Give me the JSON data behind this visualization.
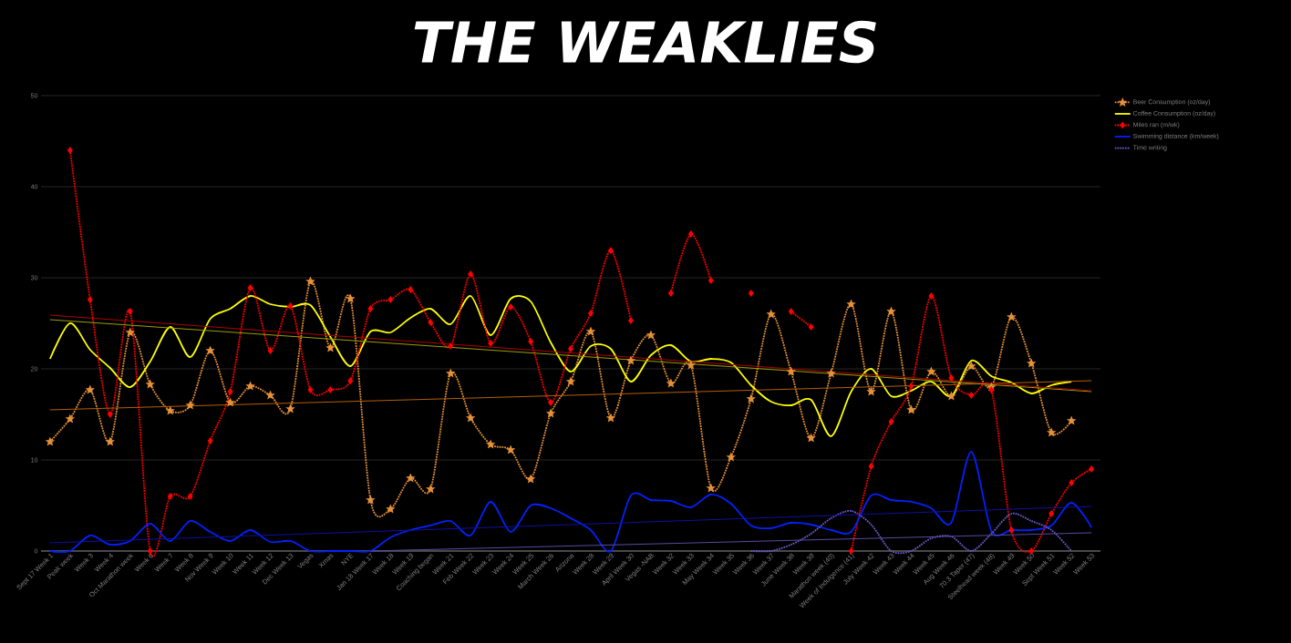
{
  "chart_data": {
    "type": "line",
    "title": "THE WEAKLIES",
    "categories": [
      "Sept 17 Week 1",
      "Peak week",
      "Week 3",
      "Week 4",
      "Oct Marathon week",
      "Week 6",
      "Week 7",
      "Week 8",
      "Nov Week 9",
      "Week 10",
      "Week 11",
      "Week 12",
      "Dec Week 13",
      "Vegas",
      "Xmas",
      "NYE",
      "Jan 18 Week 17",
      "Week 18",
      "Week 19",
      "Coaching began",
      "Week 21",
      "Feb Week 22",
      "Week 23",
      "Week 24",
      "Week 25",
      "March Week 26",
      "Arizona",
      "Week 28",
      "Week 29",
      "April Week 30",
      "Vegas -NAB",
      "Week 32",
      "Week 33",
      "May Week 34",
      "Week 35",
      "Week 36",
      "Week 37",
      "June Week 38",
      "Week 39",
      "Marathon week (40)",
      "Week of Indulgence (41)",
      "July Week 42",
      "Week 43",
      "Week 44",
      "Week 45",
      "Aug Week 46",
      "70.3 Taper (47)",
      "Steelhead week (48)",
      "Week 49",
      "Week 50",
      "Sept Week 51",
      "Week 52",
      "Week 53"
    ],
    "series": [
      {
        "name": "Beer Consumption (oz/day)",
        "color": "#e69138",
        "marker": "star",
        "line_style": "dotted",
        "values": [
          12.0,
          14.5,
          17.7,
          12.0,
          24.0,
          18.3,
          15.4,
          16.0,
          22.0,
          16.3,
          18.1,
          17.1,
          15.6,
          29.6,
          22.3,
          27.7,
          5.6,
          4.6,
          8.0,
          6.8,
          19.5,
          14.6,
          11.7,
          11.1,
          7.9,
          15.1,
          18.6,
          24.1,
          14.6,
          20.9,
          23.7,
          18.4,
          20.4,
          6.9,
          10.3,
          16.7,
          26.0,
          19.7,
          12.4,
          19.5,
          27.1,
          17.5,
          26.3,
          15.5,
          19.7,
          17.0,
          20.3,
          18.0,
          25.7,
          20.6,
          13.0,
          14.3,
          null
        ]
      },
      {
        "name": "Coffee Consumption (oz/day)",
        "color": "#ffff00",
        "marker": "none",
        "line_style": "solid",
        "values": [
          21.1,
          25.0,
          22.1,
          20.1,
          18.0,
          20.8,
          24.6,
          21.3,
          25.5,
          26.6,
          28.0,
          27.1,
          26.8,
          27.0,
          23.5,
          20.3,
          24.1,
          24.0,
          25.6,
          26.6,
          24.9,
          28.0,
          23.7,
          27.7,
          27.4,
          22.9,
          19.7,
          22.5,
          22.2,
          18.6,
          21.5,
          22.6,
          20.8,
          21.1,
          20.7,
          18.2,
          16.4,
          16.0,
          16.6,
          12.6,
          17.5,
          20.0,
          17.0,
          17.6,
          18.6,
          17.0,
          20.9,
          19.2,
          18.5,
          17.3,
          18.2,
          18.6,
          null
        ]
      },
      {
        "name": "Miles ran (m/wk)",
        "color": "#ff0000",
        "marker": "diamond",
        "line_style": "dotted",
        "values": [
          null,
          44.0,
          27.6,
          15.0,
          26.3,
          0,
          6.0,
          6.0,
          12.1,
          17.5,
          28.9,
          22.0,
          26.9,
          17.7,
          17.7,
          18.7,
          26.6,
          27.6,
          28.7,
          25.1,
          22.5,
          30.4,
          22.8,
          26.8,
          23.0,
          16.3,
          22.2,
          26.1,
          33.0,
          25.3,
          null,
          28.3,
          34.8,
          29.7,
          null,
          28.3,
          null,
          26.3,
          24.6,
          null,
          0,
          9.3,
          14.2,
          18.1,
          28.0,
          19.0,
          17.1,
          17.7,
          2.3,
          0,
          4.1,
          7.5,
          9.0
        ]
      },
      {
        "name": "Swimming distance (km/week)",
        "color": "#0022ff",
        "marker": "none",
        "line_style": "solid",
        "values": [
          0,
          0,
          1.7,
          0.7,
          1.1,
          3.0,
          1.1,
          3.3,
          2.1,
          1.1,
          2.3,
          1.0,
          1.1,
          0,
          0,
          0,
          0,
          1.5,
          2.3,
          2.8,
          3.3,
          1.7,
          5.4,
          2.1,
          5.0,
          4.7,
          3.6,
          2.3,
          0,
          6.1,
          5.6,
          5.5,
          4.8,
          6.2,
          5.2,
          2.8,
          2.5,
          3.1,
          2.9,
          2.3,
          2.1,
          6.1,
          5.6,
          5.4,
          4.7,
          3.1,
          10.9,
          2.2,
          2.3,
          2.3,
          2.8,
          5.3,
          2.6
        ]
      },
      {
        "name": "Time writing",
        "color": "#6a5acd",
        "marker": "none",
        "line_style": "dotted",
        "values": [
          null,
          null,
          null,
          null,
          null,
          null,
          null,
          null,
          null,
          null,
          null,
          null,
          null,
          null,
          null,
          null,
          null,
          null,
          null,
          null,
          null,
          null,
          null,
          null,
          null,
          null,
          null,
          null,
          null,
          null,
          null,
          null,
          null,
          null,
          null,
          0,
          0,
          0.7,
          1.9,
          3.6,
          4.4,
          2.9,
          0,
          0,
          1.4,
          1.6,
          0,
          1.9,
          4.1,
          3.3,
          2.3,
          0,
          null
        ]
      },
      {
        "type": "line",
        "color": "#b45f06",
        "marker": "none",
        "line_style": "solid",
        "values": [
          15.5,
          null,
          null,
          null,
          null,
          null,
          null,
          null,
          null,
          null,
          null,
          null,
          null,
          null,
          null,
          null,
          null,
          null,
          null,
          null,
          null,
          null,
          null,
          null,
          null,
          null,
          null,
          null,
          null,
          null,
          null,
          null,
          null,
          null,
          null,
          null,
          null,
          null,
          null,
          null,
          null,
          null,
          null,
          null,
          null,
          null,
          null,
          null,
          null,
          null,
          null,
          null,
          18.7
        ]
      },
      {
        "type": "line",
        "color": "#9e9e00",
        "marker": "none",
        "line_style": "solid",
        "values": [
          25.4,
          null,
          null,
          null,
          null,
          null,
          null,
          null,
          null,
          null,
          null,
          null,
          null,
          null,
          null,
          null,
          null,
          null,
          null,
          null,
          null,
          null,
          null,
          null,
          null,
          null,
          null,
          null,
          null,
          null,
          null,
          null,
          null,
          null,
          null,
          null,
          null,
          null,
          null,
          null,
          null,
          null,
          null,
          null,
          null,
          null,
          null,
          null,
          null,
          null,
          null,
          null,
          17.5
        ]
      },
      {
        "type": "line",
        "color": "#b00000",
        "marker": "none",
        "line_style": "solid",
        "values": [
          25.9,
          null,
          null,
          null,
          null,
          null,
          null,
          null,
          null,
          null,
          null,
          null,
          null,
          null,
          null,
          null,
          null,
          null,
          null,
          null,
          null,
          null,
          null,
          null,
          null,
          null,
          null,
          null,
          null,
          null,
          null,
          null,
          null,
          null,
          null,
          null,
          null,
          null,
          null,
          null,
          null,
          null,
          null,
          null,
          null,
          null,
          null,
          null,
          null,
          null,
          null,
          null,
          17.6
        ]
      },
      {
        "type": "line",
        "color": "#1010a0",
        "marker": "none",
        "line_style": "solid",
        "values": [
          0.9,
          null,
          null,
          null,
          null,
          null,
          null,
          null,
          null,
          null,
          null,
          null,
          null,
          null,
          null,
          null,
          null,
          null,
          null,
          null,
          null,
          null,
          null,
          null,
          null,
          null,
          null,
          null,
          null,
          null,
          null,
          null,
          null,
          null,
          null,
          null,
          null,
          null,
          null,
          null,
          null,
          null,
          null,
          null,
          null,
          null,
          null,
          null,
          null,
          null,
          null,
          null,
          4.9
        ]
      },
      {
        "type": "line",
        "color": "#5a4aa0",
        "marker": "none",
        "line_style": "solid",
        "values": [
          null,
          null,
          null,
          null,
          null,
          null,
          null,
          null,
          null,
          null,
          null,
          null,
          null,
          null,
          null,
          null,
          0,
          null,
          null,
          null,
          null,
          null,
          null,
          null,
          null,
          null,
          null,
          null,
          null,
          null,
          null,
          null,
          null,
          null,
          null,
          null,
          null,
          null,
          null,
          null,
          null,
          null,
          null,
          null,
          null,
          null,
          null,
          null,
          null,
          null,
          null,
          null,
          2.0
        ]
      }
    ],
    "ylim": [
      0,
      50
    ],
    "yticks": [
      0,
      10,
      20,
      30,
      40,
      50
    ],
    "grid": "y",
    "legend": "right"
  }
}
